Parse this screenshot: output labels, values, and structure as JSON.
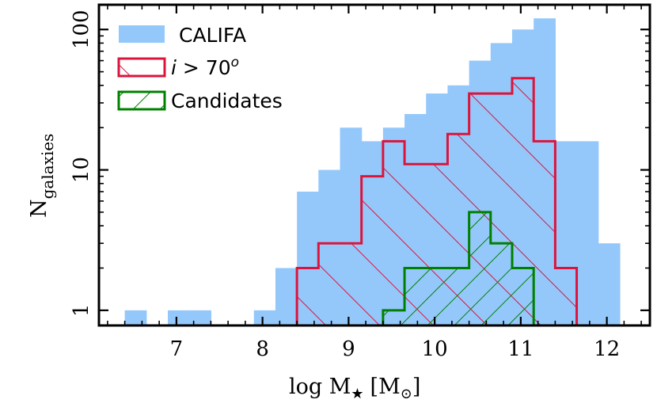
{
  "chart_data": {
    "type": "histogram",
    "x_scale": "linear",
    "y_scale": "log",
    "xlim": [
      6.1,
      12.5
    ],
    "ylim": [
      0.78,
      150
    ],
    "bin_width": 0.25,
    "xlabel": {
      "main": "log M",
      "sub": "★",
      "unit_open": "[M",
      "unit_sub": "⊙",
      "unit_close": "]"
    },
    "ylabel": {
      "main": "N",
      "sub": "galaxies"
    },
    "x_ticks": [
      7,
      8,
      9,
      10,
      11,
      12
    ],
    "x_tick_labels": [
      "7",
      "8",
      "9",
      "10",
      "11",
      "12"
    ],
    "y_ticks": [
      1,
      10,
      100
    ],
    "y_tick_labels": [
      "1",
      "10",
      "100"
    ],
    "legend": [
      {
        "label": "CALIFA",
        "style": "filled"
      },
      {
        "label_italic": "i",
        "label_rest": " > 70",
        "label_sup": "o",
        "style": "hatched-backslash"
      },
      {
        "label": "Candidates",
        "style": "hatched-slash"
      }
    ],
    "series": [
      {
        "name": "CALIFA",
        "color": "#94c8fb",
        "style": "filled",
        "bin_starts": [
          6.4,
          6.9,
          7.15,
          7.9,
          8.15,
          8.4,
          8.65,
          8.9,
          9.15,
          9.4,
          9.65,
          9.9,
          10.15,
          10.4,
          10.65,
          10.9,
          11.15,
          11.4,
          11.65,
          11.9
        ],
        "counts": [
          1,
          1,
          1,
          1,
          2,
          7,
          10,
          20,
          16,
          20,
          25,
          35,
          40,
          60,
          80,
          100,
          120,
          16,
          16,
          3
        ]
      },
      {
        "name": "i > 70o",
        "color": "#dc143c",
        "style": "step-hatch-backslash",
        "bin_starts": [
          8.4,
          8.65,
          8.9,
          9.15,
          9.4,
          9.65,
          9.9,
          10.15,
          10.4,
          10.65,
          10.9,
          11.15,
          11.4
        ],
        "counts": [
          2,
          3,
          3,
          9,
          16,
          11,
          11,
          18,
          35,
          35,
          45,
          16,
          2
        ]
      },
      {
        "name": "Candidates",
        "color": "#008000",
        "style": "step-hatch-slash",
        "bin_starts": [
          9.4,
          9.65,
          9.9,
          10.15,
          10.4,
          10.65,
          10.9
        ],
        "counts": [
          1,
          2,
          2,
          2,
          5,
          3,
          2
        ]
      }
    ]
  }
}
